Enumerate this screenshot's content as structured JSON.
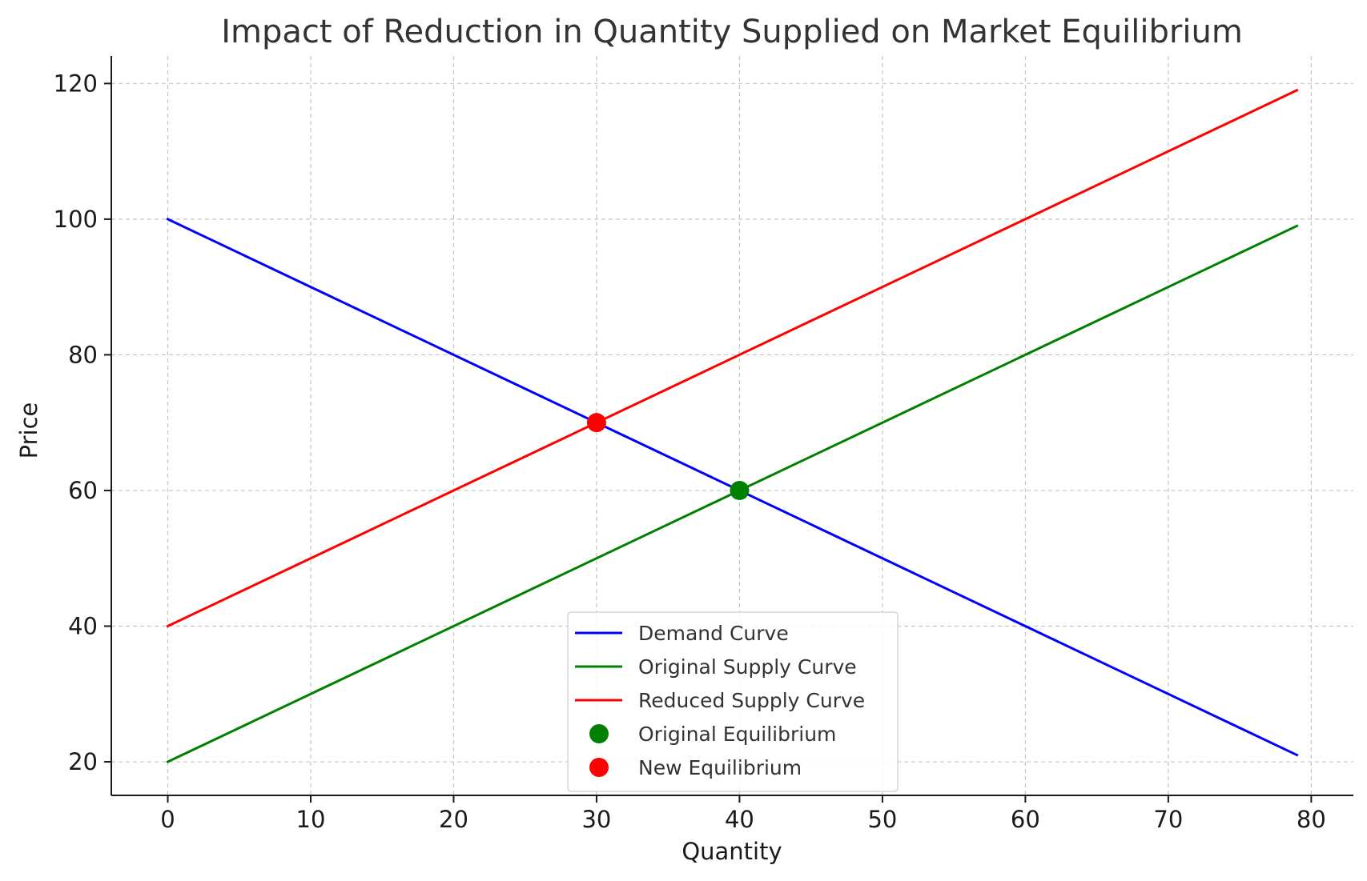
{
  "chart_data": {
    "type": "line",
    "title": "Impact of Reduction in Quantity Supplied on Market Equilibrium",
    "xlabel": "Quantity",
    "ylabel": "Price",
    "xlim": [
      -3.95,
      82.95
    ],
    "ylim": [
      15.05,
      124.05
    ],
    "xticks": [
      0,
      10,
      20,
      30,
      40,
      50,
      60,
      70,
      80
    ],
    "yticks": [
      20,
      40,
      60,
      80,
      100,
      120
    ],
    "grid": true,
    "legend_position": "bottom-center",
    "series": [
      {
        "name": "Demand Curve",
        "color": "#0000ff",
        "x": [
          0,
          79
        ],
        "y": [
          100,
          21
        ]
      },
      {
        "name": "Original Supply Curve",
        "color": "#008000",
        "x": [
          0,
          79
        ],
        "y": [
          20,
          99
        ]
      },
      {
        "name": "Reduced Supply Curve",
        "color": "#ff0000",
        "x": [
          0,
          79
        ],
        "y": [
          40,
          119
        ]
      }
    ],
    "points": [
      {
        "name": "Original Equilibrium",
        "color": "#008000",
        "x": 40,
        "y": 60
      },
      {
        "name": "New Equilibrium",
        "color": "#ff0000",
        "x": 30,
        "y": 70
      }
    ]
  }
}
